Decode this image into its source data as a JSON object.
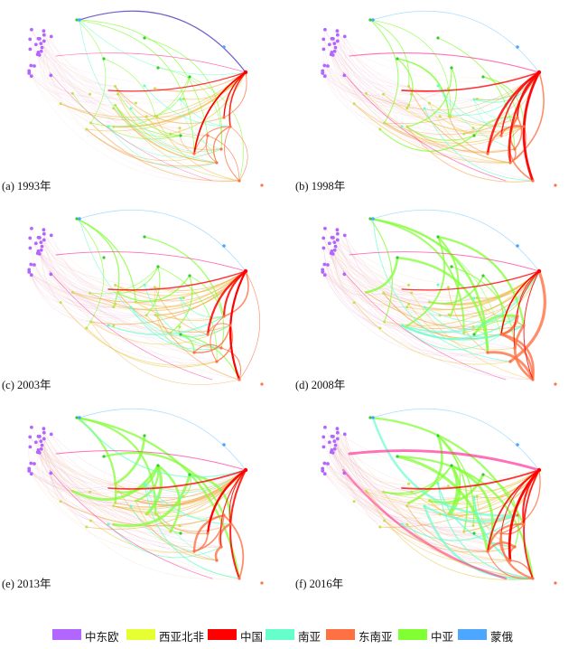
{
  "panels": [
    {
      "label": "(a) 1993年"
    },
    {
      "label": "(b) 1998年"
    },
    {
      "label": "(c) 2003年"
    },
    {
      "label": "(d) 2008年"
    },
    {
      "label": "(e) 2013年"
    },
    {
      "label": "(f) 2016年"
    }
  ],
  "legend": [
    {
      "label": "中东欧",
      "color": "#b266ff"
    },
    {
      "label": "西亚北非",
      "color": "#e6ff33"
    },
    {
      "label": "中国",
      "color": "#ff0000"
    },
    {
      "label": "南亚",
      "color": "#66ffcc"
    },
    {
      "label": "东南亚",
      "color": "#ff7043"
    },
    {
      "label": "中亚",
      "color": "#80ff33"
    },
    {
      "label": "蒙俄",
      "color": "#4da6ff"
    }
  ]
}
